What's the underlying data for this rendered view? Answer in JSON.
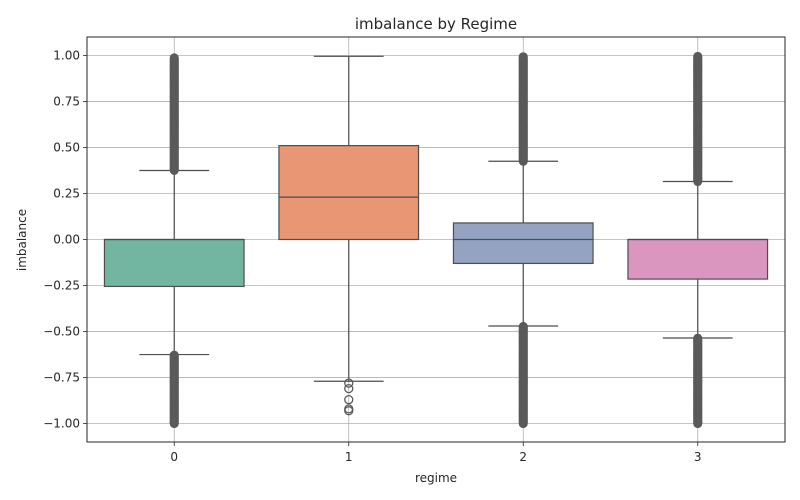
{
  "chart_data": {
    "type": "box",
    "title": "imbalance by Regime",
    "xlabel": "regime",
    "ylabel": "imbalance",
    "categories": [
      "0",
      "1",
      "2",
      "3"
    ],
    "ylim": [
      -1.1,
      1.1
    ],
    "yticks": [
      1.0,
      0.75,
      0.5,
      0.25,
      0.0,
      -0.25,
      -0.5,
      -0.75,
      -1.0
    ],
    "ytick_labels": [
      "1.00",
      "0.75",
      "0.50",
      "0.25",
      "0.00",
      "−0.25",
      "−0.50",
      "−0.75",
      "−1.00"
    ],
    "grid": true,
    "boxes": [
      {
        "category": "0",
        "color": "#72b6a1",
        "q1": -0.255,
        "median": 0.0,
        "q3": 0.0,
        "whisker_low": -0.625,
        "whisker_high": 0.375,
        "outlier_ranges": [
          [
            0.375,
            0.99
          ],
          [
            -1.0,
            -0.625
          ]
        ],
        "outliers": []
      },
      {
        "category": "1",
        "color": "#e99675",
        "q1": 0.0,
        "median": 0.23,
        "q3": 0.51,
        "whisker_low": -0.77,
        "whisker_high": 0.995,
        "outlier_ranges": [],
        "outliers": [
          -0.78,
          -0.81,
          -0.87,
          -0.92,
          -0.93
        ]
      },
      {
        "category": "2",
        "color": "#95a3c3",
        "q1": -0.13,
        "median": 0.0,
        "q3": 0.09,
        "whisker_low": -0.47,
        "whisker_high": 0.425,
        "outlier_ranges": [
          [
            0.425,
            0.995
          ],
          [
            -1.0,
            -0.47
          ]
        ],
        "outliers": []
      },
      {
        "category": "3",
        "color": "#db96c0",
        "q1": -0.215,
        "median": 0.0,
        "q3": 0.0,
        "whisker_low": -0.535,
        "whisker_high": 0.315,
        "outlier_ranges": [
          [
            0.315,
            0.995
          ],
          [
            -1.0,
            -0.535
          ]
        ],
        "outliers": []
      }
    ]
  }
}
